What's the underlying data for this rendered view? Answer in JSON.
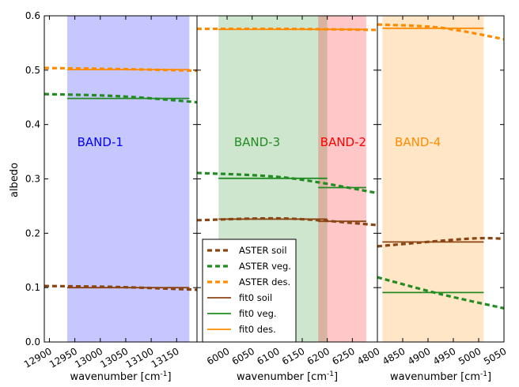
{
  "chart_data": {
    "type": "line",
    "ylabel": "albedo",
    "ylim": [
      0.0,
      0.6
    ],
    "yticks": [
      "0.0",
      "0.1",
      "0.2",
      "0.3",
      "0.4",
      "0.5",
      "0.6"
    ],
    "legend": {
      "placement": "lower-left of middle panel",
      "entries": [
        {
          "label": "ASTER soil",
          "color": "#8B4513",
          "style": "dashed"
        },
        {
          "label": "ASTER veg.",
          "color": "#228B22",
          "style": "dashed"
        },
        {
          "label": "ASTER des.",
          "color": "#FF8C00",
          "style": "dashed"
        },
        {
          "label": "fit0 soil",
          "color": "#8B4513",
          "style": "solid"
        },
        {
          "label": "fit0 veg.",
          "color": "#228B22",
          "style": "solid"
        },
        {
          "label": "fit0 des.",
          "color": "#FF8C00",
          "style": "solid"
        }
      ]
    },
    "colors": {
      "soil": "#8B4513",
      "veg": "#228B22",
      "des": "#FF8C00"
    },
    "panels": [
      {
        "xlabel": "wavenumber [cm-1]",
        "xlim": [
          12890,
          13190
        ],
        "xticks": [
          12900,
          12950,
          13000,
          13050,
          13100,
          13150
        ],
        "bands": [
          {
            "label": "BAND-1",
            "x0": 12935,
            "x1": 13175,
            "fill": "#0000FF",
            "alpha": 0.22,
            "text_color": "#0000FF",
            "text_x": 13000
          }
        ],
        "aster": {
          "soil": {
            "x": [
              12890,
              13040,
              13190
            ],
            "y": [
              0.103,
              0.101,
              0.096
            ]
          },
          "veg": {
            "x": [
              12890,
              13040,
              13190
            ],
            "y": [
              0.456,
              0.452,
              0.441
            ]
          },
          "des": {
            "x": [
              12890,
              13040,
              13190
            ],
            "y": [
              0.504,
              0.502,
              0.499
            ]
          }
        },
        "fit": {
          "soil": {
            "x0": 12935,
            "x1": 13175,
            "y": 0.1
          },
          "veg": {
            "x0": 12935,
            "x1": 13175,
            "y": 0.448
          },
          "des": {
            "x0": 12935,
            "x1": 13175,
            "y": 0.501
          }
        }
      },
      {
        "xlabel": "wavenumber [cm-1]",
        "xlim": [
          5940,
          6300
        ],
        "xticks": [
          6000,
          6050,
          6100,
          6150,
          6200,
          6250
        ],
        "bands": [
          {
            "label": "BAND-3",
            "x0": 5983,
            "x1": 6200,
            "fill": "#228B22",
            "alpha": 0.22,
            "text_color": "#228B22",
            "text_x": 6060
          },
          {
            "label": "BAND-2",
            "x0": 6182,
            "x1": 6278,
            "fill": "#FF0000",
            "alpha": 0.22,
            "text_color": "#FF0000",
            "text_x": 6232
          }
        ],
        "aster": {
          "soil": {
            "x": [
              5940,
              6120,
              6300
            ],
            "y": [
              0.224,
              0.227,
              0.215
            ]
          },
          "veg": {
            "x": [
              5940,
              6120,
              6300
            ],
            "y": [
              0.311,
              0.302,
              0.274
            ]
          },
          "des": {
            "x": [
              5940,
              6120,
              6300
            ],
            "y": [
              0.576,
              0.576,
              0.574
            ]
          }
        },
        "fit": [
          {
            "series": "soil",
            "x0": 5983,
            "x1": 6200,
            "y": 0.226
          },
          {
            "series": "veg",
            "x0": 5983,
            "x1": 6200,
            "y": 0.301
          },
          {
            "series": "des",
            "x0": 5983,
            "x1": 6200,
            "y": 0.575
          },
          {
            "series": "soil",
            "x0": 6182,
            "x1": 6278,
            "y": 0.222
          },
          {
            "series": "veg",
            "x0": 6182,
            "x1": 6278,
            "y": 0.284
          },
          {
            "series": "des",
            "x0": 6182,
            "x1": 6278,
            "y": 0.575
          }
        ]
      },
      {
        "xlabel": "wavenumber [cm-1]",
        "xlim": [
          4800,
          5050
        ],
        "xticks": [
          4800,
          4850,
          4900,
          4950,
          5000,
          5050
        ],
        "bands": [
          {
            "label": "BAND-4",
            "x0": 4810,
            "x1": 5010,
            "fill": "#FF8C00",
            "alpha": 0.22,
            "text_color": "#FF8C00",
            "text_x": 4880
          }
        ],
        "aster": {
          "soil": {
            "x": [
              4800,
              4980,
              5050
            ],
            "y": [
              0.176,
              0.19,
              0.19
            ]
          },
          "veg": {
            "x": [
              4800,
              4925,
              5050
            ],
            "y": [
              0.119,
              0.088,
              0.062
            ]
          },
          "des": {
            "x": [
              4800,
              4925,
              5050
            ],
            "y": [
              0.584,
              0.578,
              0.557
            ]
          }
        },
        "fit": {
          "soil": {
            "x0": 4810,
            "x1": 5010,
            "y": 0.184
          },
          "veg": {
            "x0": 4810,
            "x1": 5010,
            "y": 0.091
          },
          "des": {
            "x0": 4810,
            "x1": 5010,
            "y": 0.577
          }
        }
      }
    ]
  }
}
